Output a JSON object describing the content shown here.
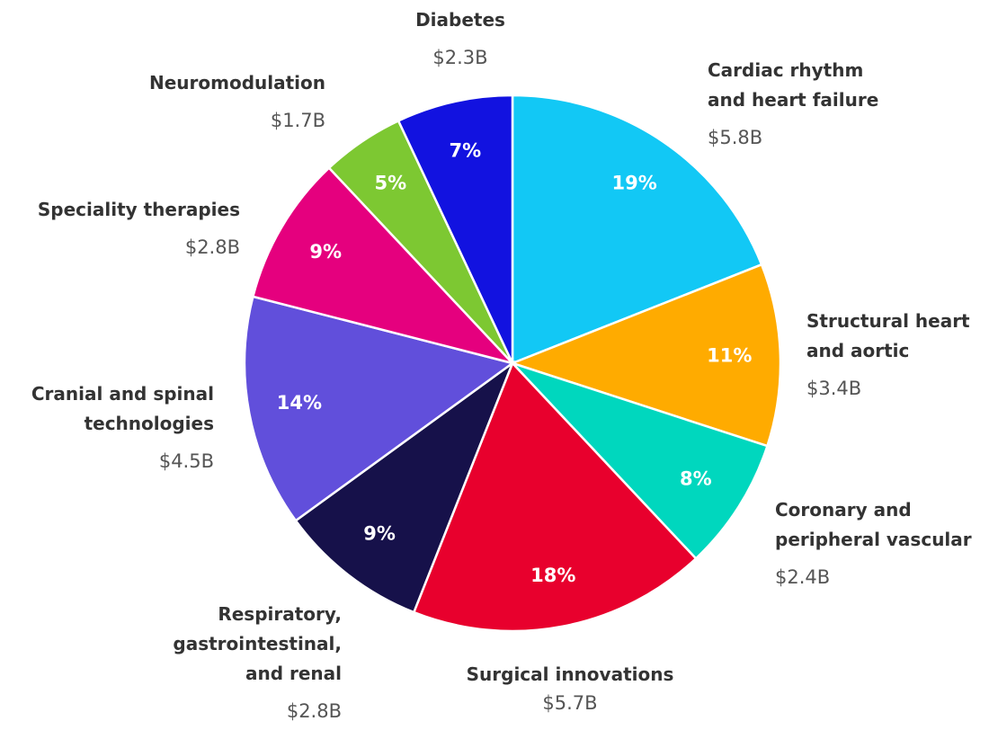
{
  "chart_data": {
    "type": "pie",
    "categories": [
      "Cardiac rhythm\nand heart failure",
      "Structural heart\nand aortic",
      "Coronary and\nperipheral vascular",
      "Surgical innovations",
      "Respiratory,\ngastrointestinal,\nand renal",
      "Cranial and spinal\ntechnologies",
      "Speciality therapies",
      "Neuromodulation",
      "Diabetes"
    ],
    "values": [
      19,
      11,
      8,
      18,
      9,
      14,
      9,
      5,
      7
    ],
    "value_labels": [
      "19%",
      "11%",
      "8%",
      "18%",
      "9%",
      "14%",
      "9%",
      "5%",
      "7%"
    ],
    "amounts": [
      5.8,
      3.4,
      2.4,
      5.7,
      2.8,
      4.5,
      2.8,
      1.7,
      2.3
    ],
    "amount_labels": [
      "$5.8B",
      "$3.4B",
      "$2.4B",
      "$5.7B",
      "$2.8B",
      "$4.5B",
      "$2.8B",
      "$1.7B",
      "$2.3B"
    ],
    "colors": [
      "#12c8f5",
      "#ffab00",
      "#00d7be",
      "#e8002d",
      "#16114a",
      "#614fdb",
      "#e5007e",
      "#7dc832",
      "#1212e0"
    ]
  }
}
